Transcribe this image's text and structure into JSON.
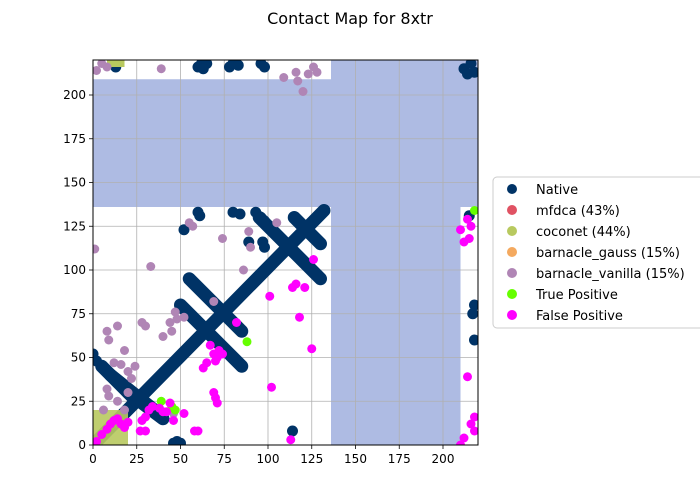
{
  "chart_data": {
    "type": "scatter",
    "title": "Contact Map for 8xtr",
    "xlabel": "",
    "ylabel": "",
    "xlim": [
      0,
      220
    ],
    "ylim": [
      0,
      220
    ],
    "xticks": [
      0,
      25,
      50,
      75,
      100,
      125,
      150,
      175,
      200
    ],
    "yticks": [
      0,
      25,
      50,
      75,
      100,
      125,
      150,
      175,
      200
    ],
    "grid": true,
    "legend_position": "right",
    "masked_regions": {
      "color": "#aebbe3",
      "rects": [
        {
          "x": [
            0,
            136
          ],
          "y": [
            136,
            209
          ]
        },
        {
          "x": [
            136,
            220
          ],
          "y": [
            136,
            220
          ]
        },
        {
          "x": [
            136,
            210
          ],
          "y": [
            0,
            136
          ]
        }
      ]
    },
    "native_bands": [
      {
        "x0": 0,
        "y0": 0,
        "x1": 132,
        "y1": 134
      },
      {
        "x0": 50,
        "y0": 80,
        "x1": 85,
        "y1": 45
      },
      {
        "x0": 55,
        "y0": 95,
        "x1": 85,
        "y1": 65
      },
      {
        "x0": 95,
        "y0": 130,
        "x1": 130,
        "y1": 95
      },
      {
        "x0": 115,
        "y0": 130,
        "x1": 130,
        "y1": 115
      },
      {
        "x0": 5,
        "y0": 45,
        "x1": 25,
        "y1": 25
      },
      {
        "x0": 20,
        "y0": 30,
        "x1": 40,
        "y1": 15
      },
      {
        "x0": 10,
        "y0": 40,
        "x1": 35,
        "y1": 20
      }
    ],
    "native_points": [
      [
        0,
        52
      ],
      [
        2,
        48
      ],
      [
        11,
        218
      ],
      [
        13,
        216
      ],
      [
        46,
        1
      ],
      [
        48,
        2
      ],
      [
        50,
        1
      ],
      [
        60,
        133
      ],
      [
        61,
        131
      ],
      [
        52,
        123
      ],
      [
        80,
        133
      ],
      [
        84,
        132
      ],
      [
        93,
        133
      ],
      [
        96,
        130
      ],
      [
        98,
        128
      ],
      [
        97,
        116
      ],
      [
        98,
        113
      ],
      [
        114,
        8
      ],
      [
        89,
        116
      ],
      [
        96,
        218
      ],
      [
        98,
        216
      ],
      [
        60,
        216
      ],
      [
        62,
        218
      ],
      [
        65,
        218
      ],
      [
        63,
        215
      ],
      [
        78,
        216
      ],
      [
        80,
        218
      ],
      [
        83,
        217
      ],
      [
        212,
        215
      ],
      [
        214,
        212
      ],
      [
        216,
        218
      ],
      [
        218,
        213
      ],
      [
        218,
        80
      ],
      [
        217,
        75
      ],
      [
        218,
        60
      ],
      [
        215,
        131
      ]
    ],
    "series": [
      {
        "name": "Native",
        "color": "#003366"
      },
      {
        "name": "mfdca (43%)",
        "color": "#e05263"
      },
      {
        "name": "coconet (44%)",
        "color": "#b8c95f"
      },
      {
        "name": "barnacle_gauss (15%)",
        "color": "#f4a95f"
      },
      {
        "name": "barnacle_vanilla (15%)",
        "color": "#b085b5",
        "points": [
          [
            2,
            214
          ],
          [
            5,
            218
          ],
          [
            8,
            216
          ],
          [
            1,
            112
          ],
          [
            8,
            65
          ],
          [
            9,
            60
          ],
          [
            8,
            32
          ],
          [
            9,
            28
          ],
          [
            14,
            68
          ],
          [
            18,
            54
          ],
          [
            16,
            46
          ],
          [
            20,
            42
          ],
          [
            22,
            38
          ],
          [
            24,
            45
          ],
          [
            14,
            25
          ],
          [
            18,
            20
          ],
          [
            28,
            70
          ],
          [
            30,
            68
          ],
          [
            33,
            102
          ],
          [
            39,
            215
          ],
          [
            40,
            62
          ],
          [
            44,
            70
          ],
          [
            45,
            65
          ],
          [
            47,
            76
          ],
          [
            48,
            72
          ],
          [
            52,
            73
          ],
          [
            55,
            127
          ],
          [
            57,
            125
          ],
          [
            69,
            82
          ],
          [
            74,
            118
          ],
          [
            86,
            100
          ],
          [
            89,
            122
          ],
          [
            90,
            113
          ],
          [
            105,
            127
          ],
          [
            109,
            210
          ],
          [
            116,
            213
          ],
          [
            117,
            208
          ],
          [
            120,
            202
          ],
          [
            123,
            212
          ],
          [
            126,
            216
          ],
          [
            128,
            213
          ],
          [
            46,
            18
          ],
          [
            20,
            30
          ],
          [
            12,
            47
          ],
          [
            6,
            20
          ]
        ]
      },
      {
        "name": "True Positive",
        "color": "#66ff00",
        "points": [
          [
            39,
            25
          ],
          [
            45,
            22
          ],
          [
            47,
            20
          ],
          [
            88,
            59
          ],
          [
            218,
            134
          ]
        ]
      },
      {
        "name": "False Positive",
        "color": "#ff00ff",
        "points": [
          [
            2,
            2
          ],
          [
            5,
            6
          ],
          [
            8,
            9
          ],
          [
            10,
            12
          ],
          [
            12,
            14
          ],
          [
            14,
            15
          ],
          [
            16,
            12
          ],
          [
            18,
            10
          ],
          [
            20,
            13
          ],
          [
            27,
            8
          ],
          [
            30,
            8
          ],
          [
            28,
            14
          ],
          [
            30,
            16
          ],
          [
            32,
            20
          ],
          [
            34,
            22
          ],
          [
            38,
            21
          ],
          [
            40,
            19
          ],
          [
            42,
            19
          ],
          [
            44,
            24
          ],
          [
            46,
            14
          ],
          [
            52,
            18
          ],
          [
            58,
            8
          ],
          [
            60,
            8
          ],
          [
            63,
            44
          ],
          [
            65,
            47
          ],
          [
            67,
            57
          ],
          [
            70,
            48
          ],
          [
            69,
            52
          ],
          [
            71,
            50
          ],
          [
            72,
            54
          ],
          [
            74,
            52
          ],
          [
            70,
            27
          ],
          [
            69,
            30
          ],
          [
            71,
            24
          ],
          [
            82,
            70
          ],
          [
            101,
            85
          ],
          [
            102,
            33
          ],
          [
            113,
            3
          ],
          [
            114,
            90
          ],
          [
            116,
            92
          ],
          [
            118,
            73
          ],
          [
            121,
            90
          ],
          [
            125,
            55
          ],
          [
            126,
            106
          ],
          [
            210,
            123
          ],
          [
            212,
            116
          ],
          [
            214,
            129
          ],
          [
            216,
            125
          ],
          [
            215,
            118
          ],
          [
            214,
            39
          ],
          [
            216,
            12
          ],
          [
            218,
            8
          ],
          [
            212,
            4
          ],
          [
            210,
            0
          ],
          [
            218,
            16
          ]
        ]
      }
    ]
  }
}
